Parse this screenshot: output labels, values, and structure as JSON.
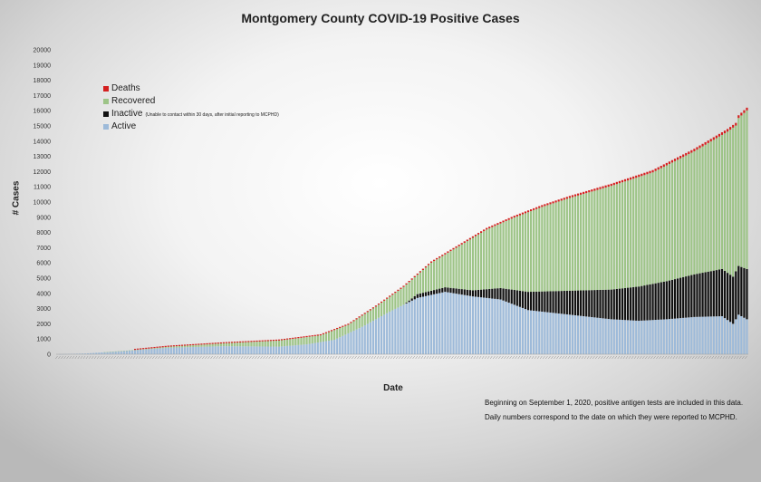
{
  "chart_data": {
    "type": "bar",
    "stacked": true,
    "title": "Montgomery County COVID-19 Positive Cases",
    "xlabel": "Date",
    "ylabel": "# Cases",
    "ylim": [
      0,
      20000
    ],
    "yticks": [
      0,
      1000,
      2000,
      3000,
      4000,
      5000,
      6000,
      7000,
      8000,
      9000,
      10000,
      11000,
      12000,
      13000,
      14000,
      15000,
      16000,
      17000,
      18000,
      19000,
      20000
    ],
    "grid": false,
    "legend_position": "top-left",
    "series": [
      {
        "name": "Deaths",
        "color": "#d42020"
      },
      {
        "name": "Recovered",
        "color": "#9dc487"
      },
      {
        "name": "Inactive",
        "note": "(Unable to contact within 30 days, after initial reporting to MCPHD)",
        "color": "#111111"
      },
      {
        "name": "Active",
        "color": "#9dbad9"
      }
    ],
    "legend_order": [
      "Deaths",
      "Recovered",
      "Inactive",
      "Active"
    ],
    "bar_count": 250,
    "total_keyframes": [
      [
        0,
        0
      ],
      [
        10,
        50
      ],
      [
        25,
        250
      ],
      [
        40,
        520
      ],
      [
        60,
        760
      ],
      [
        80,
        950
      ],
      [
        95,
        1300
      ],
      [
        105,
        2000
      ],
      [
        115,
        3200
      ],
      [
        125,
        4500
      ],
      [
        135,
        6100
      ],
      [
        145,
        7200
      ],
      [
        155,
        8300
      ],
      [
        165,
        9100
      ],
      [
        175,
        9800
      ],
      [
        185,
        10400
      ],
      [
        200,
        11200
      ],
      [
        215,
        12100
      ],
      [
        230,
        13500
      ],
      [
        242,
        14800
      ],
      [
        245,
        15200
      ],
      [
        246,
        15700
      ],
      [
        249,
        16200
      ]
    ],
    "active_keyframes": [
      [
        0,
        0
      ],
      [
        10,
        50
      ],
      [
        25,
        230
      ],
      [
        40,
        430
      ],
      [
        60,
        530
      ],
      [
        80,
        500
      ],
      [
        90,
        650
      ],
      [
        100,
        950
      ],
      [
        110,
        1800
      ],
      [
        120,
        2800
      ],
      [
        130,
        3700
      ],
      [
        140,
        4100
      ],
      [
        150,
        3800
      ],
      [
        160,
        3600
      ],
      [
        170,
        2900
      ],
      [
        180,
        2700
      ],
      [
        190,
        2500
      ],
      [
        200,
        2300
      ],
      [
        210,
        2200
      ],
      [
        220,
        2300
      ],
      [
        230,
        2450
      ],
      [
        240,
        2500
      ],
      [
        244,
        2000
      ],
      [
        246,
        2600
      ],
      [
        249,
        2300
      ]
    ],
    "inactive_keyframes": [
      [
        0,
        0
      ],
      [
        125,
        0
      ],
      [
        130,
        250
      ],
      [
        140,
        300
      ],
      [
        150,
        400
      ],
      [
        160,
        750
      ],
      [
        170,
        1200
      ],
      [
        180,
        1450
      ],
      [
        190,
        1700
      ],
      [
        200,
        1950
      ],
      [
        210,
        2250
      ],
      [
        220,
        2500
      ],
      [
        230,
        2800
      ],
      [
        240,
        3100
      ],
      [
        244,
        3100
      ],
      [
        246,
        3200
      ],
      [
        249,
        3300
      ]
    ],
    "deaths_keyframes": [
      [
        0,
        0
      ],
      [
        20,
        10
      ],
      [
        60,
        40
      ],
      [
        100,
        60
      ],
      [
        130,
        80
      ],
      [
        160,
        110
      ],
      [
        200,
        140
      ],
      [
        249,
        180
      ]
    ],
    "annotations": [
      "Beginning on September 1, 2020, positive antigen tests are included in this data.",
      "Daily numbers correspond to the date on which they were reported to MCPHD."
    ]
  }
}
